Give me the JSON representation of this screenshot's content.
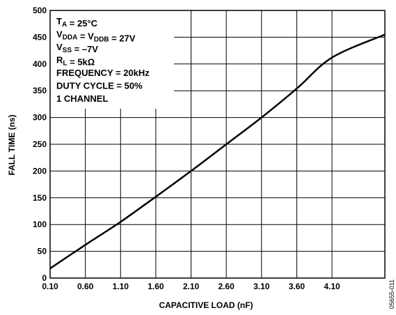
{
  "chart_data": {
    "type": "line",
    "title": "",
    "xlabel": "CAPACITIVE LOAD (nF)",
    "ylabel": "FALL TIME (ns)",
    "xlim": [
      0.1,
      4.85
    ],
    "ylim": [
      0,
      500
    ],
    "x_ticks": [
      "0.10",
      "0.60",
      "1.10",
      "1.60",
      "2.10",
      "2.60",
      "3.10",
      "3.60",
      "4.10"
    ],
    "y_ticks": [
      "0",
      "50",
      "100",
      "150",
      "200",
      "250",
      "300",
      "350",
      "400",
      "450",
      "500"
    ],
    "grid": true,
    "series": [
      {
        "name": "",
        "x": [
          0.1,
          0.6,
          1.1,
          1.6,
          2.1,
          2.6,
          3.1,
          3.6,
          4.1,
          4.85
        ],
        "y": [
          18,
          62,
          105,
          152,
          200,
          250,
          300,
          354,
          412,
          455
        ]
      }
    ],
    "annotation_lines": [
      {
        "parts": [
          {
            "t": "T"
          },
          {
            "t": "A",
            "sub": true
          },
          {
            "t": " = 25°C"
          }
        ]
      },
      {
        "parts": [
          {
            "t": "V"
          },
          {
            "t": "DDA",
            "sub": true
          },
          {
            "t": " = V"
          },
          {
            "t": "DDB",
            "sub": true
          },
          {
            "t": " = 27V"
          }
        ]
      },
      {
        "parts": [
          {
            "t": "V"
          },
          {
            "t": "SS",
            "sub": true
          },
          {
            "t": " = –7V"
          }
        ]
      },
      {
        "parts": [
          {
            "t": "R"
          },
          {
            "t": "L",
            "sub": true
          },
          {
            "t": " = 5kΩ"
          }
        ]
      },
      {
        "parts": [
          {
            "t": "FREQUENCY = 20kHz"
          }
        ]
      },
      {
        "parts": [
          {
            "t": "DUTY CYCLE = 50%"
          }
        ]
      },
      {
        "parts": [
          {
            "t": "1 CHANNEL"
          }
        ]
      }
    ],
    "figure_id": "05655-011"
  }
}
